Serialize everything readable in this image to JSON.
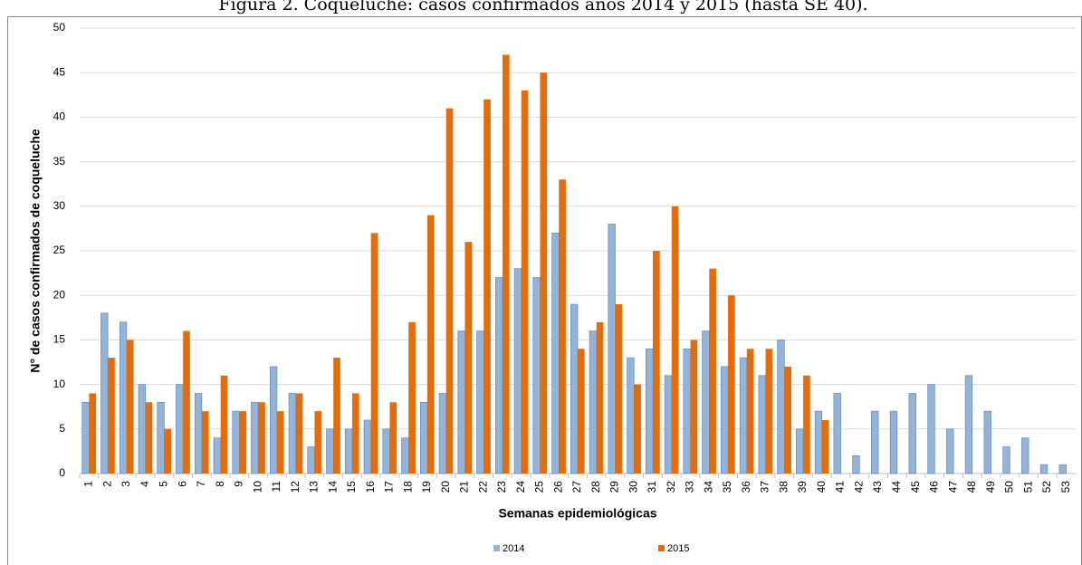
{
  "chart_data": {
    "type": "bar",
    "title": "Figura 2. Coqueluche: casos confirmados años 2014 y 2015 (hasta SE 40).",
    "x_label": "Semanas epidemiológicas",
    "y_label": "N° de casos confirmados de coqueluche",
    "categories": [
      "1",
      "2",
      "3",
      "4",
      "5",
      "6",
      "7",
      "8",
      "9",
      "10",
      "11",
      "12",
      "13",
      "14",
      "15",
      "16",
      "17",
      "18",
      "19",
      "20",
      "21",
      "22",
      "23",
      "24",
      "25",
      "26",
      "27",
      "28",
      "29",
      "30",
      "31",
      "32",
      "33",
      "34",
      "35",
      "36",
      "37",
      "38",
      "39",
      "40",
      "41",
      "42",
      "43",
      "44",
      "45",
      "46",
      "47",
      "48",
      "49",
      "50",
      "51",
      "52",
      "53"
    ],
    "series": [
      {
        "name": "2014",
        "color": "#95b3d7",
        "values": [
          8,
          18,
          17,
          10,
          8,
          10,
          9,
          4,
          7,
          8,
          12,
          9,
          3,
          5,
          5,
          6,
          5,
          4,
          8,
          9,
          16,
          16,
          22,
          23,
          22,
          27,
          19,
          16,
          28,
          13,
          14,
          11,
          14,
          16,
          12,
          13,
          11,
          15,
          5,
          7,
          9,
          2,
          7,
          7,
          9,
          10,
          5,
          11,
          7,
          3,
          4,
          1,
          1
        ]
      },
      {
        "name": "2015",
        "color": "#e46c0a",
        "values": [
          9,
          13,
          15,
          8,
          5,
          16,
          7,
          11,
          7,
          8,
          7,
          9,
          7,
          13,
          9,
          27,
          8,
          17,
          29,
          41,
          26,
          42,
          47,
          43,
          45,
          33,
          14,
          17,
          19,
          10,
          25,
          30,
          15,
          23,
          20,
          14,
          14,
          12,
          11,
          6,
          null,
          null,
          null,
          null,
          null,
          null,
          null,
          null,
          null,
          null,
          null,
          null,
          null
        ]
      }
    ],
    "ylim": [
      0,
      50
    ],
    "yticks": [
      0,
      5,
      10,
      15,
      20,
      25,
      30,
      35,
      40,
      45,
      50
    ],
    "grid": true,
    "legend": "bottom"
  }
}
